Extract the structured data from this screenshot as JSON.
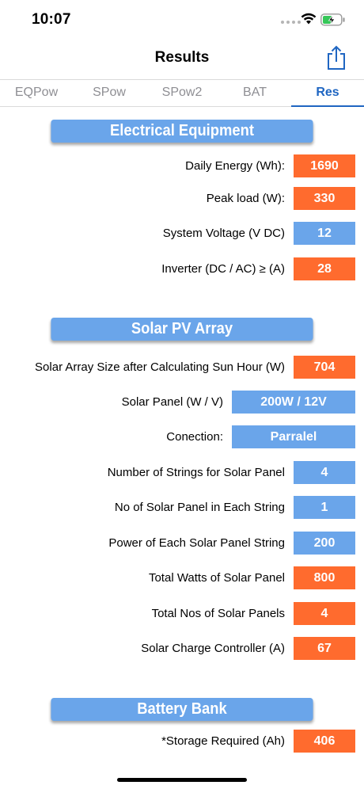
{
  "status_bar": {
    "time": "10:07"
  },
  "nav": {
    "title": "Results"
  },
  "tabs": [
    "EQPow",
    "SPow",
    "SPow2",
    "BAT",
    "Res"
  ],
  "active_tab": "Res",
  "colors": {
    "orange": "#ff6b2e",
    "blue": "#6aa5ea",
    "accent": "#1f66c2"
  },
  "sections": {
    "electrical": {
      "title": "Electrical Equipment",
      "rows": [
        {
          "label": "Daily Energy (Wh):",
          "value": "1690",
          "color": "orange"
        },
        {
          "label": "Peak load (W):",
          "value": "330",
          "color": "orange"
        },
        {
          "label": "System Voltage (V DC)",
          "value": "12",
          "color": "blue"
        },
        {
          "label": "Inverter (DC / AC) ≥ (A)",
          "value": "28",
          "color": "orange"
        }
      ]
    },
    "solar": {
      "title": "Solar PV Array",
      "rows": [
        {
          "label": "Solar Array Size after Calculating Sun Hour  (W)",
          "value": "704",
          "color": "orange"
        },
        {
          "label": "Solar Panel (W / V)",
          "value": "200W / 12V",
          "color": "blue"
        },
        {
          "label": "Conection:",
          "value": "Parralel",
          "color": "blue"
        },
        {
          "label": "Number of Strings for Solar Panel",
          "value": "4",
          "color": "blue"
        },
        {
          "label": "No of Solar Panel in Each String",
          "value": "1",
          "color": "blue"
        },
        {
          "label": "Power of Each Solar Panel String",
          "value": "200",
          "color": "blue"
        },
        {
          "label": "Total Watts of Solar Panel",
          "value": "800",
          "color": "orange"
        },
        {
          "label": "Total Nos of Solar Panels",
          "value": "4",
          "color": "orange"
        },
        {
          "label": "Solar Charge Controller (A)",
          "value": "67",
          "color": "orange"
        }
      ]
    },
    "battery": {
      "title": "Battery Bank",
      "rows": [
        {
          "label": "*Storage Required (Ah)",
          "value": "406",
          "color": "orange"
        }
      ]
    }
  }
}
